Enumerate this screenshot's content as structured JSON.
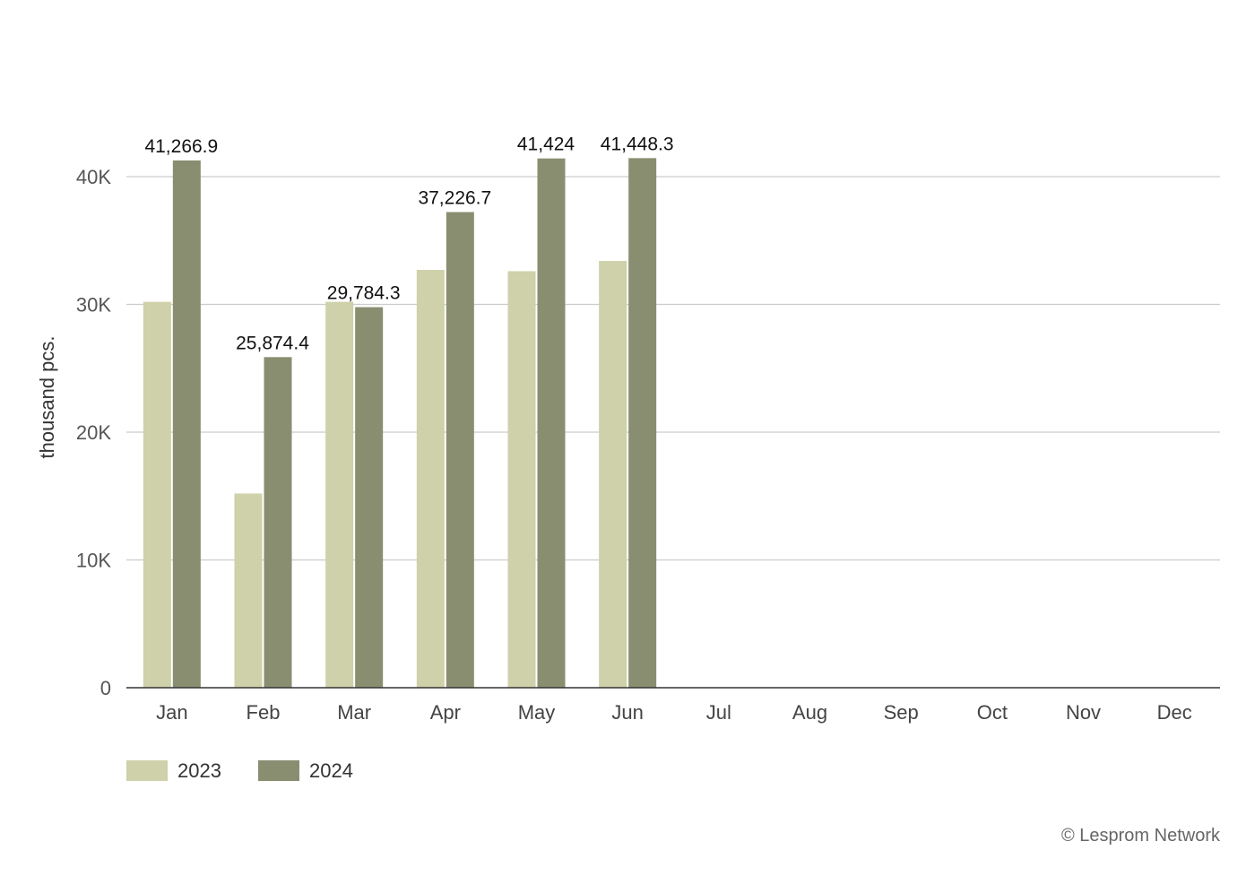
{
  "chart_data": {
    "type": "bar",
    "categories": [
      "Jan",
      "Feb",
      "Mar",
      "Apr",
      "May",
      "Jun",
      "Jul",
      "Aug",
      "Sep",
      "Oct",
      "Nov",
      "Dec"
    ],
    "series": [
      {
        "name": "2023",
        "color": "#ced1a9",
        "values": [
          30200,
          15200,
          30200,
          32700,
          32600,
          33400,
          null,
          null,
          null,
          null,
          null,
          null
        ]
      },
      {
        "name": "2024",
        "color": "#8a8e70",
        "values": [
          41266.9,
          25874.4,
          29784.3,
          37226.7,
          41424,
          41448.3,
          null,
          null,
          null,
          null,
          null,
          null
        ],
        "labels": [
          "41,266.9",
          "25,874.4",
          "29,784.3",
          "37,226.7",
          "41,424",
          "41,448.3",
          "",
          "",
          "",
          "",
          "",
          ""
        ]
      }
    ],
    "ylabel": "thousand pcs.",
    "ylim": [
      0,
      40000
    ],
    "yticks": [
      0,
      10000,
      20000,
      30000,
      40000
    ],
    "ytick_labels": [
      "0",
      "10K",
      "20K",
      "30K",
      "40K"
    ],
    "grid": true,
    "legend": "bottom-left"
  },
  "credit": "© Lesprom Network"
}
